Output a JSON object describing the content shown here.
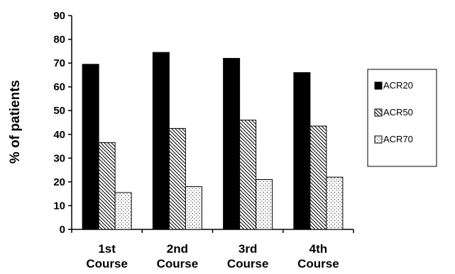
{
  "chart_data": {
    "type": "bar",
    "title": "",
    "xlabel": "",
    "ylabel": "% of patients",
    "ylim": [
      0,
      90
    ],
    "yticks": [
      0,
      10,
      20,
      30,
      40,
      50,
      60,
      70,
      80,
      90
    ],
    "grid": false,
    "legend_position": "right",
    "categories": [
      [
        "1st",
        "Course"
      ],
      [
        "2nd",
        "Course"
      ],
      [
        "3rd",
        "Course"
      ],
      [
        "4th",
        "Course"
      ]
    ],
    "series": [
      {
        "name": "ACR20",
        "fill": "solid-black",
        "values": [
          69.5,
          74.5,
          72,
          66
        ]
      },
      {
        "name": "ACR50",
        "fill": "diagonal-hatch",
        "values": [
          36.5,
          42.5,
          46,
          43.5
        ]
      },
      {
        "name": "ACR70",
        "fill": "dots",
        "values": [
          15.5,
          18,
          21,
          22
        ]
      }
    ]
  }
}
